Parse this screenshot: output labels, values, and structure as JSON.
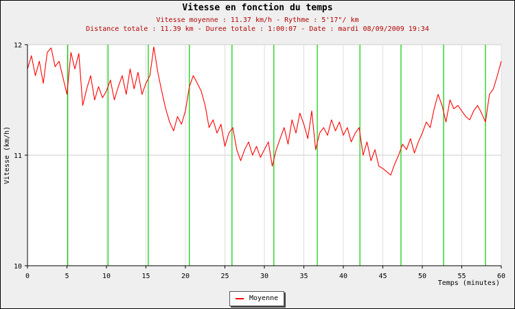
{
  "header": {
    "title": "Vitesse en fonction du temps",
    "line1": "Vitesse moyenne : 11.37 km/h - Rythme : 5'17\"/ km",
    "line2": "Distance totale : 11.39 km - Duree totale : 1:00:07 - Date : mardi 08/09/2009 19:34"
  },
  "colors": {
    "series": "#ff0000",
    "lap_markers": "#00cc00",
    "subtitle": "#b40000",
    "grid": "#cccccc",
    "plot_bg": "#ffffff",
    "outer_bg": "#efefef"
  },
  "chart_data": {
    "type": "line",
    "title": "Vitesse en fonction du temps",
    "xlabel": "Temps (minutes)",
    "ylabel": "Vitesse (km/h)",
    "xlim": [
      0,
      60
    ],
    "ylim": [
      10,
      12
    ],
    "x_ticks": [
      0,
      5,
      10,
      15,
      20,
      25,
      30,
      35,
      40,
      45,
      50,
      55,
      60
    ],
    "y_ticks": [
      10,
      11,
      12
    ],
    "grid": true,
    "legend": {
      "entries": [
        "Moyenne"
      ],
      "position": "bottom-center"
    },
    "lap_markers_x": [
      5.1,
      10.2,
      15.3,
      20.5,
      25.9,
      31.2,
      36.7,
      42.1,
      47.3,
      52.7,
      58.0
    ],
    "series": [
      {
        "name": "Moyenne",
        "x": [
          0,
          0.5,
          1,
          1.5,
          2,
          2.5,
          3,
          3.5,
          4,
          4.5,
          5,
          5.5,
          6,
          6.5,
          7,
          7.5,
          8,
          8.5,
          9,
          9.5,
          10,
          10.5,
          11,
          11.5,
          12,
          12.5,
          13,
          13.5,
          14,
          14.5,
          15,
          15.5,
          16,
          16.5,
          17,
          17.5,
          18,
          18.5,
          19,
          19.5,
          20,
          20.5,
          21,
          21.5,
          22,
          22.5,
          23,
          23.5,
          24,
          24.5,
          25,
          25.5,
          26,
          26.5,
          27,
          27.5,
          28,
          28.5,
          29,
          29.5,
          30,
          30.5,
          31,
          31.5,
          32,
          32.5,
          33,
          33.5,
          34,
          34.5,
          35,
          35.5,
          36,
          36.5,
          37,
          37.5,
          38,
          38.5,
          39,
          39.5,
          40,
          40.5,
          41,
          41.5,
          42,
          42.5,
          43,
          43.5,
          44,
          44.5,
          45,
          45.5,
          46,
          46.5,
          47,
          47.5,
          48,
          48.5,
          49,
          49.5,
          50,
          50.5,
          51,
          51.5,
          52,
          52.5,
          53,
          53.5,
          54,
          54.5,
          55,
          55.5,
          56,
          56.5,
          57,
          57.5,
          58,
          58.5,
          59,
          59.5,
          60
        ],
        "y": [
          11.78,
          11.9,
          11.72,
          11.85,
          11.65,
          11.93,
          11.97,
          11.8,
          11.85,
          11.7,
          11.55,
          11.93,
          11.78,
          11.92,
          11.45,
          11.6,
          11.72,
          11.5,
          11.62,
          11.52,
          11.58,
          11.68,
          11.5,
          11.62,
          11.72,
          11.55,
          11.78,
          11.6,
          11.75,
          11.55,
          11.65,
          11.72,
          11.98,
          11.75,
          11.58,
          11.42,
          11.3,
          11.22,
          11.35,
          11.28,
          11.4,
          11.62,
          11.72,
          11.65,
          11.58,
          11.45,
          11.25,
          11.32,
          11.2,
          11.28,
          11.08,
          11.2,
          11.25,
          11.05,
          10.95,
          11.05,
          11.12,
          11.0,
          11.08,
          10.98,
          11.05,
          11.12,
          10.9,
          11.05,
          11.15,
          11.25,
          11.1,
          11.32,
          11.2,
          11.38,
          11.28,
          11.15,
          11.4,
          11.05,
          11.2,
          11.25,
          11.18,
          11.32,
          11.22,
          11.3,
          11.18,
          11.25,
          11.12,
          11.2,
          11.25,
          11.0,
          11.12,
          10.95,
          11.05,
          10.9,
          10.88,
          10.85,
          10.82,
          10.92,
          11.0,
          11.1,
          11.05,
          11.15,
          11.02,
          11.12,
          11.2,
          11.3,
          11.25,
          11.42,
          11.55,
          11.45,
          11.3,
          11.5,
          11.42,
          11.45,
          11.4,
          11.35,
          11.32,
          11.4,
          11.45,
          11.38,
          11.3,
          11.55,
          11.6,
          11.72,
          11.85
        ]
      }
    ]
  }
}
